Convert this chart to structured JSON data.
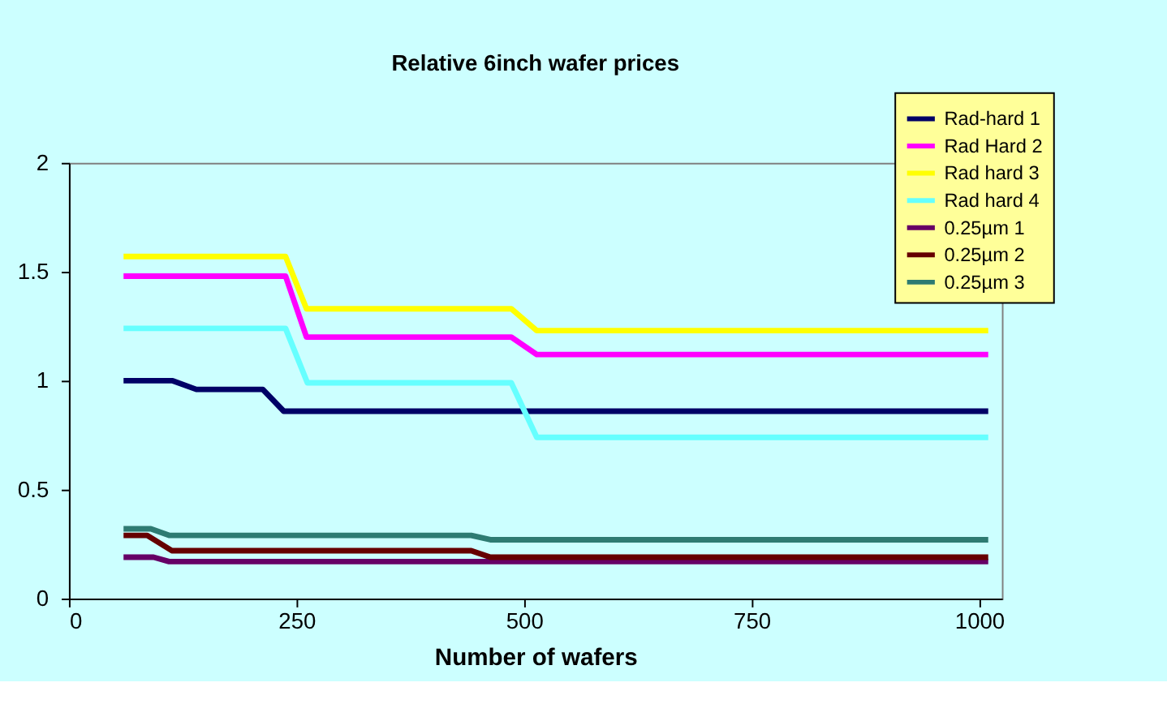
{
  "chart_data": {
    "type": "line",
    "title": "Relative 6inch wafer prices",
    "xlabel": "Number of wafers",
    "xlim": [
      0,
      1025
    ],
    "xticks": [
      0,
      250,
      500,
      750,
      1000
    ],
    "ylim": [
      0,
      2
    ],
    "yticks": [
      0,
      0.5,
      1,
      1.5,
      2
    ],
    "grid": false,
    "legend": "top right",
    "marker": "none",
    "line_style": "solid",
    "series": [
      {
        "name": "Rad-hard 1",
        "color": "#000066",
        "x": [
          60,
          114,
          140,
          213,
          236,
          1010
        ],
        "values": [
          1.0,
          1.0,
          0.96,
          0.96,
          0.86,
          0.86
        ]
      },
      {
        "name": "Rad Hard 2",
        "color": "#ff00ff",
        "x": [
          60,
          238,
          261,
          486,
          514,
          1010
        ],
        "values": [
          1.48,
          1.48,
          1.2,
          1.2,
          1.12,
          1.12
        ]
      },
      {
        "name": "Rad hard 3",
        "color": "#ffff00",
        "x": [
          60,
          238,
          261,
          486,
          514,
          1010
        ],
        "values": [
          1.57,
          1.57,
          1.33,
          1.33,
          1.23,
          1.23
        ]
      },
      {
        "name": "Rad hard 4",
        "color": "#66ffff",
        "x": [
          60,
          238,
          262,
          486,
          514,
          1010
        ],
        "values": [
          1.24,
          1.24,
          0.99,
          0.99,
          0.74,
          0.74
        ]
      },
      {
        "name": "0.25µm 1",
        "color": "#660066",
        "x": [
          60,
          93,
          110,
          1010
        ],
        "values": [
          0.19,
          0.19,
          0.17,
          0.17
        ]
      },
      {
        "name": "0.25µm 2",
        "color": "#660000",
        "x": [
          60,
          86,
          113,
          442,
          463,
          1010
        ],
        "values": [
          0.29,
          0.29,
          0.22,
          0.22,
          0.19,
          0.19
        ]
      },
      {
        "name": "0.25µm 3",
        "color": "#2e7b72",
        "x": [
          60,
          90,
          110,
          442,
          463,
          1010
        ],
        "values": [
          0.32,
          0.32,
          0.29,
          0.29,
          0.27,
          0.27
        ]
      }
    ]
  }
}
